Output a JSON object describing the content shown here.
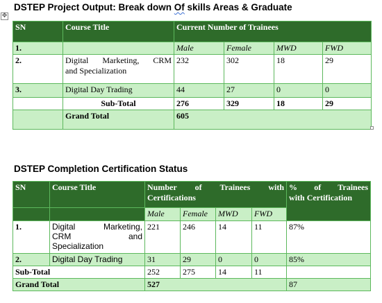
{
  "table1": {
    "title_before": "DSTEP Project Output: Break down ",
    "title_flagged": "Of",
    "title_after": " skills Areas & Graduate",
    "headers": {
      "sn": "SN",
      "course": "Course Title",
      "current": "Current Number  of Trainees"
    },
    "subheaders": {
      "sn": "1.",
      "male": "Male",
      "female": "Female",
      "mwd": "MWD",
      "fwd": "FWD"
    },
    "rows": [
      {
        "sn": "2.",
        "course_line1": "Digital  Marketing,  CRM",
        "course_line2": "and Specialization",
        "male": "232",
        "female": "302",
        "mwd": "18",
        "fwd": "29"
      },
      {
        "sn": "3.",
        "course": "Digital Day Trading",
        "male": "44",
        "female": "27",
        "mwd": "0",
        "fwd": "0"
      }
    ],
    "subtotal": {
      "label": "Sub-Total",
      "male": "276",
      "female": "329",
      "mwd": "18",
      "fwd": "29"
    },
    "grandtotal": {
      "label": "Grand Total",
      "value": "605"
    }
  },
  "table2": {
    "title": "DSTEP Completion Certification Status",
    "headers": {
      "sn": "SN",
      "course": "Course Title",
      "number_line1": "Number    of    Trainees    with",
      "number_line2": "Certifications",
      "pct_line1": "%  of  Trainees",
      "pct_line2": "with Certification"
    },
    "subheaders": {
      "male": "Male",
      "female": "Female",
      "mwd": "MWD",
      "fwd": "FWD"
    },
    "rows": [
      {
        "sn": "1.",
        "course_line1": "Digital      Marketing,",
        "course_line2": "CRM                and",
        "course_line3": "Specialization",
        "male": "221",
        "female": "246",
        "mwd": "14",
        "fwd": "11",
        "pct": "87%"
      },
      {
        "sn": "2.",
        "course": "Digital Day Trading",
        "male": "31",
        "female": "29",
        "mwd": "0",
        "fwd": "0",
        "pct": "85%"
      }
    ],
    "subtotal": {
      "label": "Sub-Total",
      "male": "252",
      "female": "275",
      "mwd": "14",
      "fwd": "11"
    },
    "grandtotal": {
      "label": "Grand Total",
      "value": "527",
      "pct": "87"
    }
  }
}
